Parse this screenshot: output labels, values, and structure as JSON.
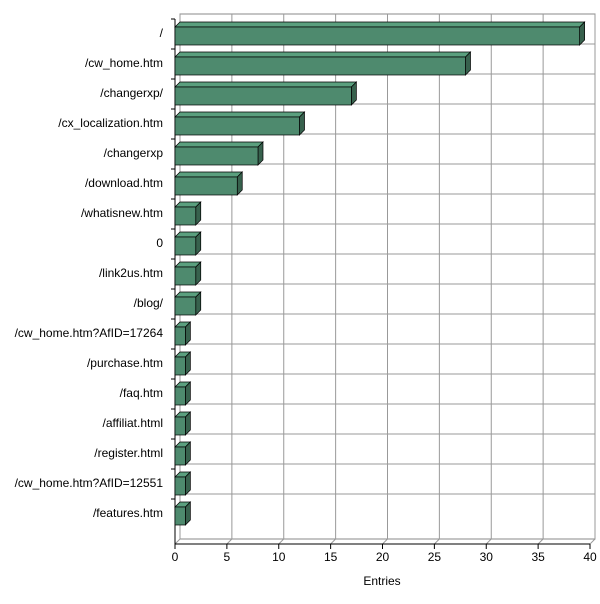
{
  "chart_data": {
    "type": "bar",
    "orientation": "horizontal",
    "categories": [
      "/",
      "/cw_home.htm",
      "/changerxp/",
      "/cx_localization.htm",
      "/changerxp",
      "/download.htm",
      "/whatisnew.htm",
      "0",
      "/link2us.htm",
      "/blog/",
      "/cw_home.htm?AfID=17264",
      "/purchase.htm",
      "/faq.htm",
      "/affiliat.html",
      "/register.html",
      "/cw_home.htm?AfID=12551",
      "/features.htm"
    ],
    "values": [
      39,
      28,
      17,
      12,
      8,
      6,
      2,
      2,
      2,
      2,
      1,
      1,
      1,
      1,
      1,
      1,
      1
    ],
    "color": "#4e8a6e",
    "x_label": "Entries",
    "xlim": [
      0,
      40
    ],
    "xticks": [
      0,
      5,
      10,
      15,
      20,
      25,
      30,
      35,
      40
    ],
    "grid": true
  }
}
